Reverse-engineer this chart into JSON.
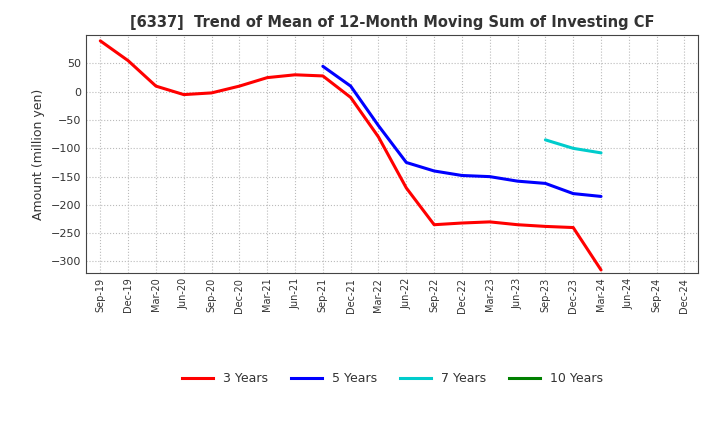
{
  "title": "[6337]  Trend of Mean of 12-Month Moving Sum of Investing CF",
  "ylabel": "Amount (million yen)",
  "x_labels": [
    "Sep-19",
    "Dec-19",
    "Mar-20",
    "Jun-20",
    "Sep-20",
    "Dec-20",
    "Mar-21",
    "Jun-21",
    "Sep-21",
    "Dec-21",
    "Mar-22",
    "Jun-22",
    "Sep-22",
    "Dec-22",
    "Mar-23",
    "Jun-23",
    "Sep-23",
    "Dec-23",
    "Mar-24",
    "Jun-24",
    "Sep-24",
    "Dec-24"
  ],
  "ylim": [
    -320,
    100
  ],
  "yticks": [
    50,
    0,
    -50,
    -100,
    -150,
    -200,
    -250,
    -300
  ],
  "series_3y": {
    "label": "3 Years",
    "color": "#FF0000",
    "values": [
      90,
      55,
      10,
      -5,
      -2,
      10,
      25,
      30,
      28,
      -10,
      -80,
      -170,
      -235,
      -232,
      -230,
      -235,
      -238,
      -240,
      -315,
      null,
      null,
      null
    ]
  },
  "series_5y": {
    "label": "5 Years",
    "color": "#0000FF",
    "values": [
      null,
      null,
      null,
      null,
      null,
      null,
      null,
      null,
      45,
      10,
      -60,
      -125,
      -140,
      -148,
      -150,
      -158,
      -162,
      -180,
      -185,
      null,
      null,
      null
    ]
  },
  "series_7y": {
    "label": "7 Years",
    "color": "#00CCCC",
    "values": [
      null,
      null,
      null,
      null,
      null,
      null,
      null,
      null,
      null,
      null,
      null,
      null,
      null,
      null,
      null,
      null,
      -85,
      -100,
      -108,
      null,
      null,
      null
    ]
  },
  "series_10y": {
    "label": "10 Years",
    "color": "#008000",
    "values": [
      null,
      null,
      null,
      null,
      null,
      null,
      null,
      null,
      null,
      null,
      null,
      null,
      null,
      null,
      null,
      null,
      null,
      null,
      null,
      null,
      null,
      null
    ]
  },
  "background_color": "#FFFFFF",
  "plot_bg_color": "#FFFFFF",
  "grid_color": "#BBBBBB",
  "title_color": "#333333",
  "axis_color": "#333333"
}
